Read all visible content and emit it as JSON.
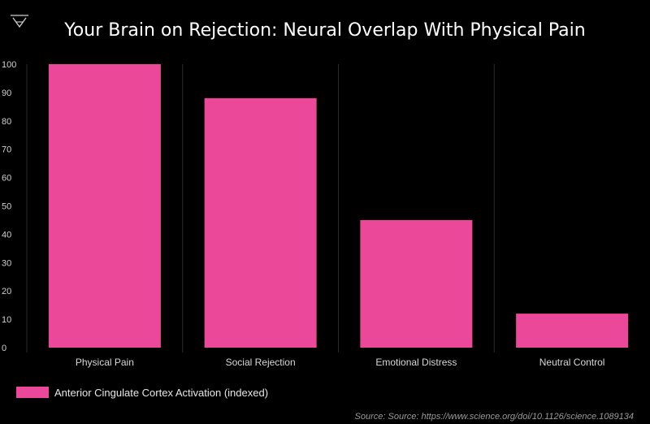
{
  "chart_data": {
    "type": "bar",
    "title": "Your Brain on Rejection: Neural Overlap With Physical Pain",
    "categories": [
      "Physical Pain",
      "Social Rejection",
      "Emotional Distress",
      "Neutral Control"
    ],
    "series": [
      {
        "name": "Anterior Cingulate Cortex Activation (indexed)",
        "values": [
          100,
          88,
          45,
          12
        ]
      }
    ],
    "ylim": [
      0,
      100
    ],
    "yticks": [
      0,
      10,
      20,
      30,
      40,
      50,
      60,
      70,
      80,
      90,
      100
    ],
    "grid": "vertical",
    "legend": "bottom-left",
    "source": "Source: Source: https://www.science.org/doi/10.1126/science.1089134"
  },
  "colors": {
    "bar": "#ec4899",
    "background": "#000000",
    "grid": "#2a2a2a"
  },
  "logo": {
    "icon": "triangle-logo-icon"
  }
}
